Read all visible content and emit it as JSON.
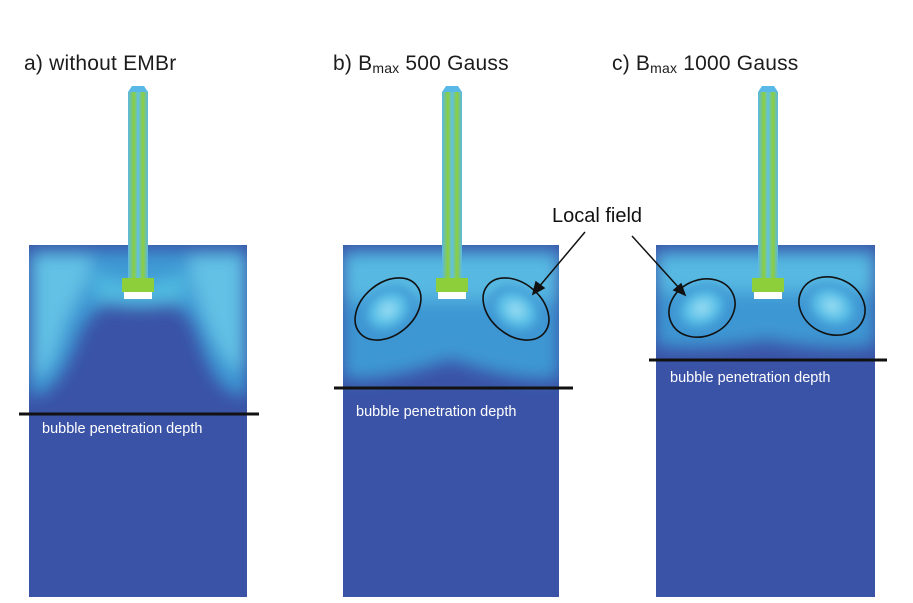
{
  "panels": [
    {
      "prefix": "a) ",
      "title": "without EMBr",
      "sub": "",
      "suffix": "",
      "depth_label": "bubble penetration depth"
    },
    {
      "prefix": "b) B",
      "title": "",
      "sub": "max",
      "suffix": " 500 Gauss",
      "depth_label": "bubble penetration depth"
    },
    {
      "prefix": "c) B",
      "title": "",
      "sub": "max",
      "suffix": " 1000 Gauss",
      "depth_label": "bubble penetration depth"
    }
  ],
  "callout": {
    "label": "Local field"
  },
  "colors": {
    "mold_deep": "#3a53a6",
    "mold_mid": "#2f6fc0",
    "plume_cyan": "#4fb9e0",
    "plume_light": "#7fd4ee",
    "nozzle_green": "#8ccf3a",
    "nozzle_blue": "#5ab8e6",
    "depth_line": "#111111"
  }
}
